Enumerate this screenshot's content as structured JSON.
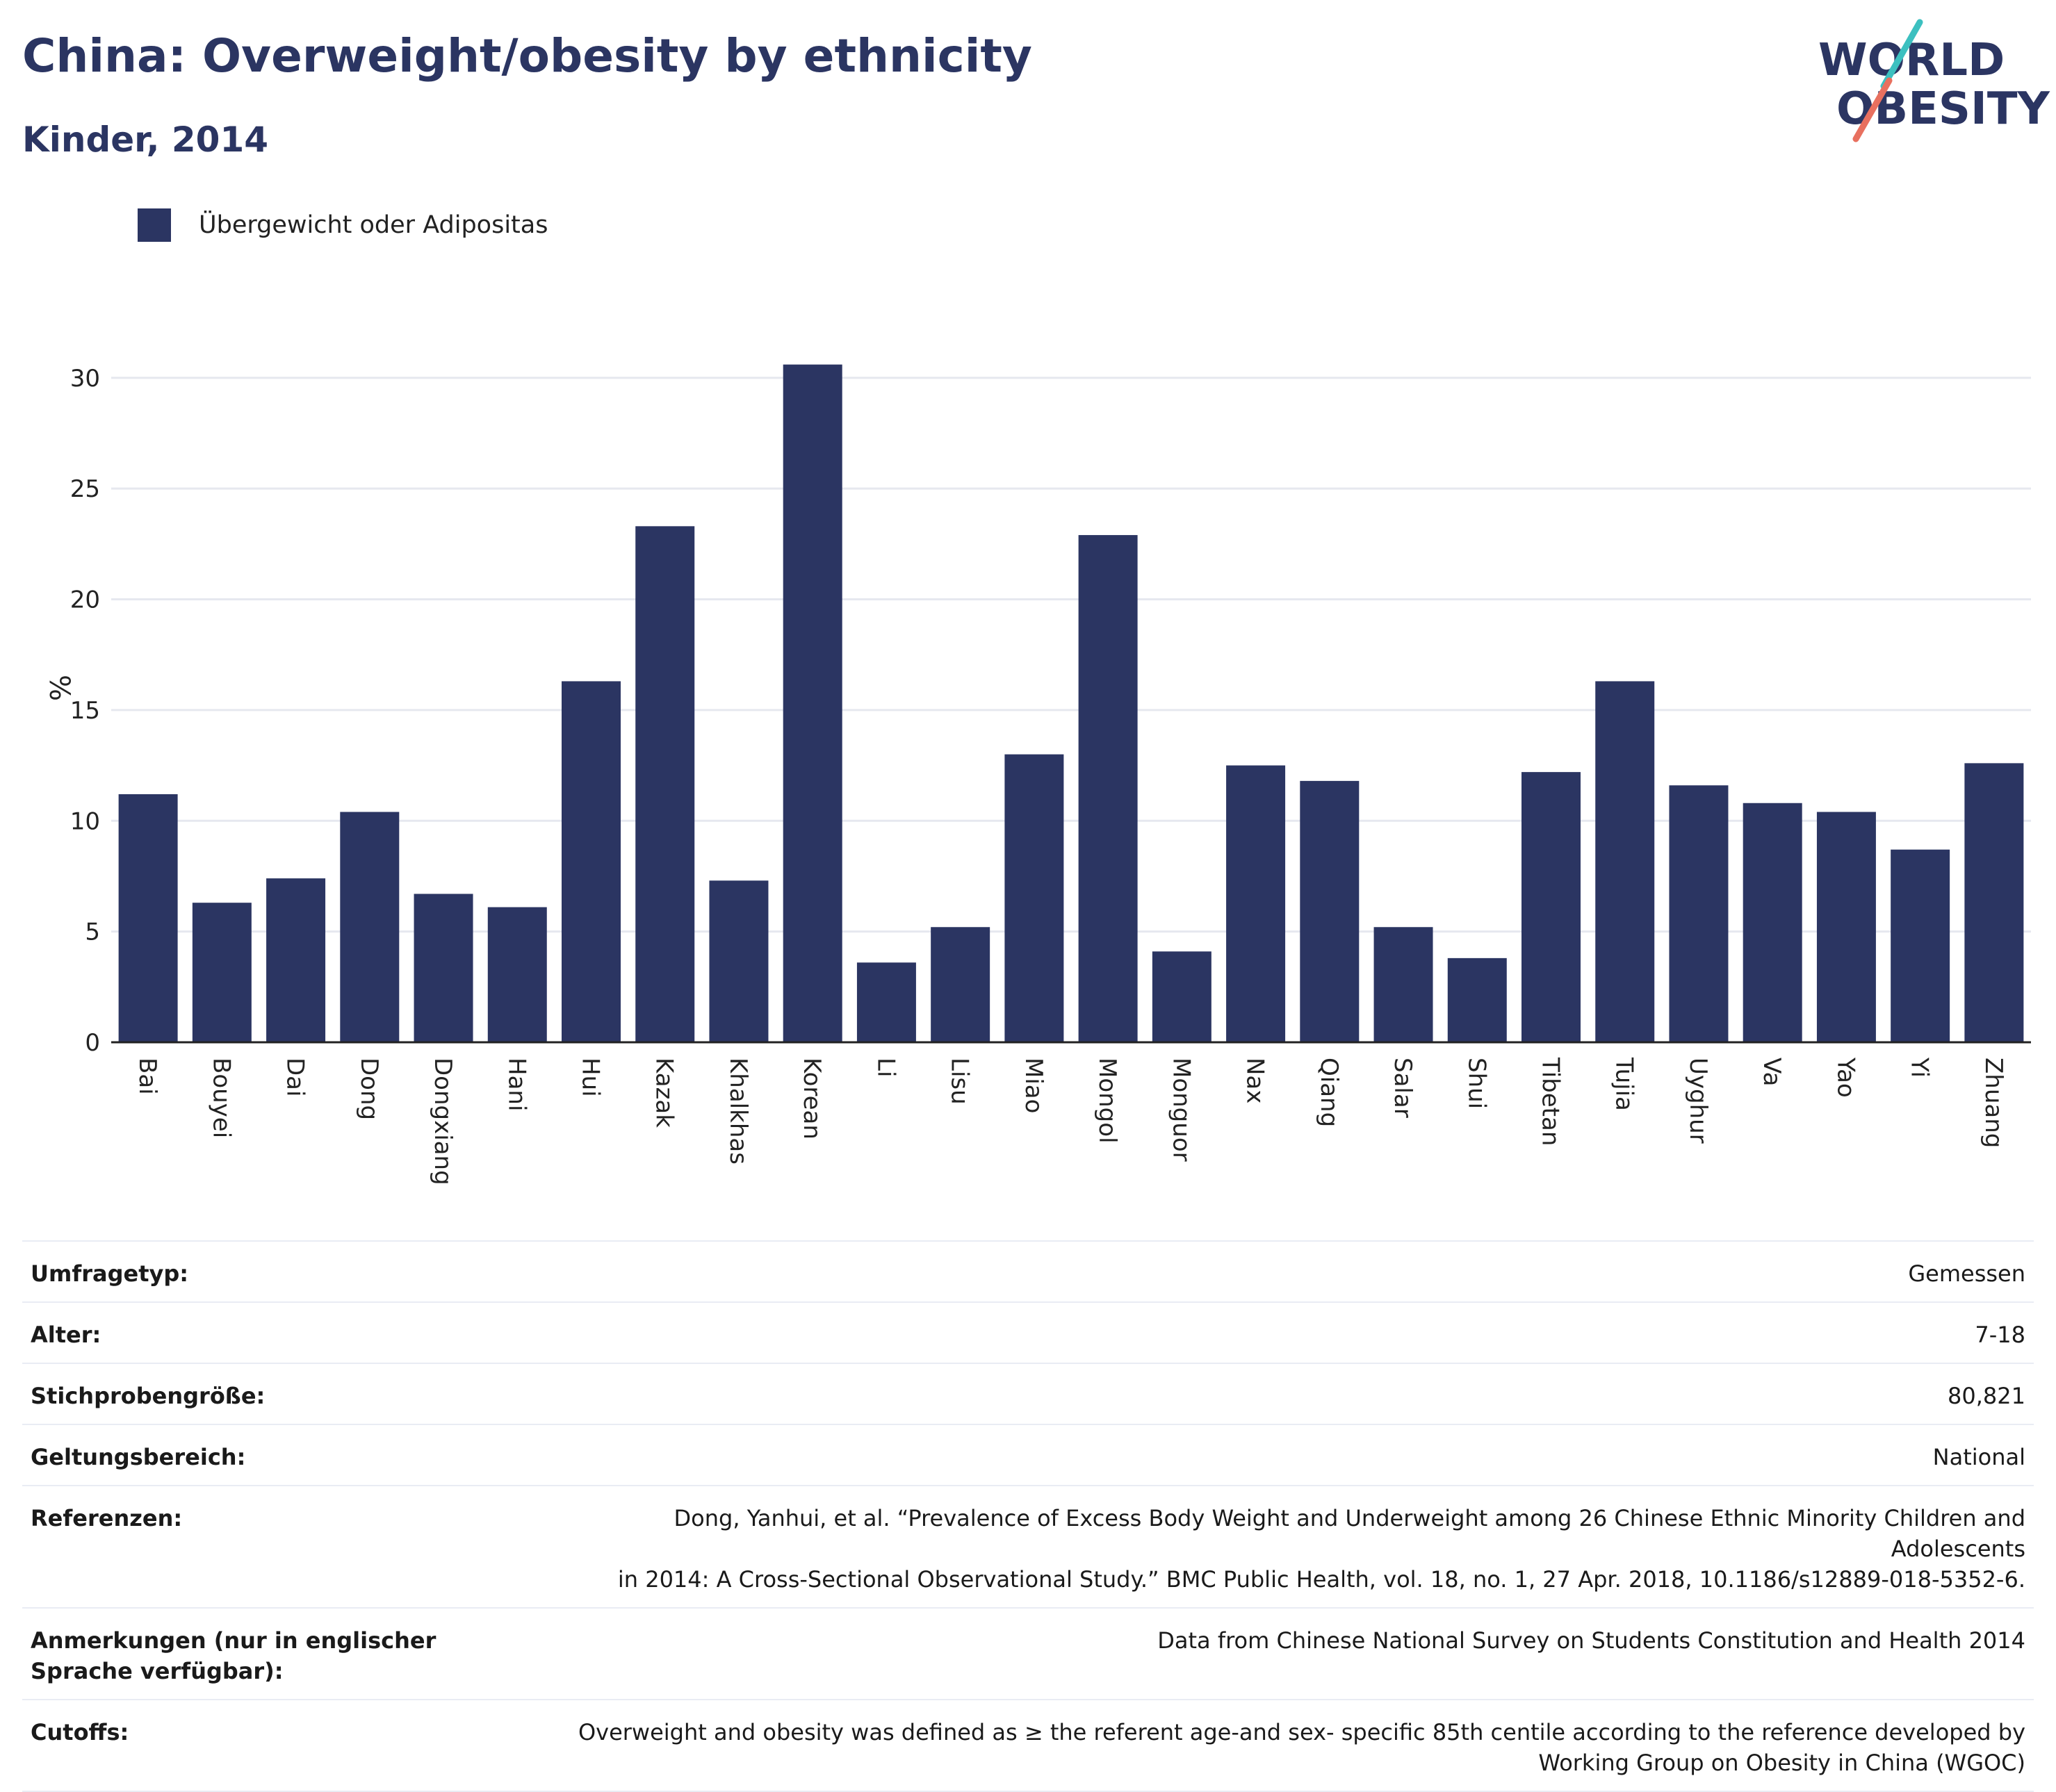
{
  "header": {
    "title": "China: Overweight/obesity by ethnicity",
    "subtitle": "Kinder, 2014"
  },
  "logo": {
    "line1": "WORLD",
    "line2": "OBESITY",
    "colors": {
      "text": "#2b3562",
      "slash_teal": "#3cc0c0",
      "slash_red": "#e8705f"
    }
  },
  "legend": {
    "label": "Übergewicht oder Adipositas",
    "color": "#2b3562"
  },
  "chart_data": {
    "type": "bar",
    "ylabel": "%",
    "xlabel": "",
    "ylim": [
      0,
      32
    ],
    "yticks": [
      0,
      5,
      10,
      15,
      20,
      25,
      30
    ],
    "grid": true,
    "legend_position": "top-left",
    "series": [
      {
        "name": "Übergewicht oder Adipositas",
        "color": "#2b3562",
        "values": [
          11.2,
          6.3,
          7.4,
          10.4,
          6.7,
          6.1,
          16.3,
          23.3,
          7.3,
          30.6,
          3.6,
          5.2,
          13.0,
          22.9,
          4.1,
          12.5,
          11.8,
          5.2,
          3.8,
          12.2,
          16.3,
          11.6,
          10.8,
          10.4,
          8.7,
          12.6
        ]
      }
    ],
    "categories": [
      "Bai",
      "Bouyei",
      "Dai",
      "Dong",
      "Dongxiang",
      "Hani",
      "Hui",
      "Kazak",
      "Khalkhas",
      "Korean",
      "Li",
      "Lisu",
      "Miao",
      "Mongol",
      "Monguor",
      "Nax",
      "Qiang",
      "Salar",
      "Shui",
      "Tibetan",
      "Tujia",
      "Uyghur",
      "Va",
      "Yao",
      "Yi",
      "Zhuang"
    ]
  },
  "meta_table": [
    {
      "key": "Umfragetyp:",
      "value": [
        "Gemessen"
      ]
    },
    {
      "key": "Alter:",
      "value": [
        "7-18"
      ]
    },
    {
      "key": "Stichprobengröße:",
      "value": [
        "80,821"
      ]
    },
    {
      "key": "Geltungsbereich:",
      "value": [
        "National"
      ]
    },
    {
      "key": "Referenzen:",
      "value": [
        "Dong, Yanhui, et al. “Prevalence of Excess Body Weight and Underweight among 26 Chinese Ethnic Minority Children and Adolescents",
        "in 2014: A Cross-Sectional Observational Study.” BMC Public Health, vol. 18, no. 1, 27 Apr. 2018, 10.1186/s12889-018-5352-6."
      ]
    },
    {
      "key": "Anmerkungen (nur in englischer Sprache verfügbar):",
      "value": [
        "Data from Chinese National Survey on Students Constitution and Health 2014"
      ]
    },
    {
      "key": "Cutoffs:",
      "value": [
        "Overweight and obesity was defined as ≥ the referent age-and sex- specific 85th centile according to the reference developed by",
        "Working Group on Obesity in China (WGOC)"
      ]
    }
  ]
}
